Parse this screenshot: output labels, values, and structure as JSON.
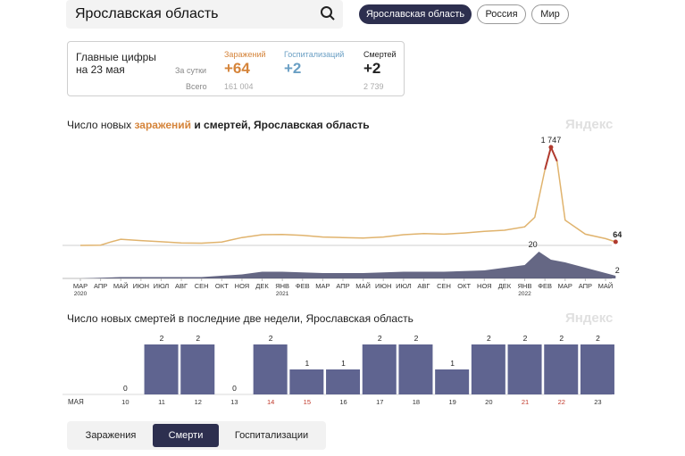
{
  "search": {
    "value": "Ярославская область"
  },
  "regions": [
    "Ярославская область",
    "Россия",
    "Мир"
  ],
  "summary": {
    "title_line1": "Главные цифры",
    "title_line2": "на 23 мая",
    "row_daily": "За сутки",
    "row_total": "Всего",
    "infections": {
      "label": "Заражений",
      "daily": "+64",
      "total": "161 004",
      "color": "#d5843a"
    },
    "hospital": {
      "label": "Госпитализаций",
      "daily": "+2",
      "total": "",
      "color": "#6a9fc4"
    },
    "deaths": {
      "label": "Смертей",
      "daily": "+2",
      "total": "2 739",
      "color": "#222222"
    }
  },
  "chart1": {
    "title_a": "Число новых ",
    "title_hl": "заражений",
    "title_b": " и ",
    "title_bold": "смертей",
    "title_c": ", Ярославская область",
    "logo": "Яндекс"
  },
  "chart2": {
    "title": "Число новых смертей в последние две недели, Ярославская область",
    "logo": "Яндекс"
  },
  "chart_data": [
    {
      "type": "line",
      "title": "Число новых заражений и смертей, Ярославская область",
      "x_ticks": [
        "МАР",
        "АПР",
        "МАЙ",
        "ИЮН",
        "ИЮЛ",
        "АВГ",
        "СЕН",
        "ОКТ",
        "НОЯ",
        "ДЕК",
        "ЯНВ",
        "ФЕВ",
        "МАР",
        "АПР",
        "МАЙ",
        "ИЮН",
        "ИЮЛ",
        "АВГ",
        "СЕН",
        "ОКТ",
        "НОЯ",
        "ДЕК",
        "ЯНВ",
        "ФЕВ",
        "МАР",
        "АПР",
        "МАЙ"
      ],
      "year_labels": [
        {
          "year": "2020",
          "after": "МАР"
        },
        {
          "year": "2021",
          "after": "ЯНВ"
        },
        {
          "year": "2022",
          "after": "ЯНВ"
        }
      ],
      "infections_peak": "1 747",
      "infections_last": "64",
      "deaths_peak": "20",
      "deaths_last": "2",
      "series": [
        {
          "name": "Заражений",
          "color": "#d5843a",
          "points": [
            [
              0,
              0
            ],
            [
              1,
              5
            ],
            [
              1.5,
              60
            ],
            [
              2,
              110
            ],
            [
              3,
              85
            ],
            [
              4,
              65
            ],
            [
              5,
              45
            ],
            [
              6,
              40
            ],
            [
              7,
              60
            ],
            [
              8,
              140
            ],
            [
              9,
              190
            ],
            [
              10,
              195
            ],
            [
              11,
              180
            ],
            [
              12,
              150
            ],
            [
              13,
              140
            ],
            [
              14,
              130
            ],
            [
              15,
              150
            ],
            [
              16,
              190
            ],
            [
              17,
              210
            ],
            [
              18,
              200
            ],
            [
              19,
              220
            ],
            [
              20,
              250
            ],
            [
              21,
              270
            ],
            [
              22,
              330
            ],
            [
              22.5,
              500
            ],
            [
              23,
              1350
            ],
            [
              23.3,
              1747
            ],
            [
              23.6,
              1500
            ],
            [
              24,
              450
            ],
            [
              25,
              200
            ],
            [
              26,
              120
            ],
            [
              26.5,
              64
            ]
          ]
        },
        {
          "name": "Смертей",
          "color": "#4a4c6e",
          "points": [
            [
              0,
              0
            ],
            [
              2,
              1
            ],
            [
              4,
              1
            ],
            [
              6,
              1
            ],
            [
              8,
              3
            ],
            [
              9,
              5
            ],
            [
              10,
              5
            ],
            [
              12,
              4
            ],
            [
              14,
              4
            ],
            [
              16,
              5
            ],
            [
              18,
              5
            ],
            [
              20,
              6
            ],
            [
              21,
              8
            ],
            [
              22,
              10
            ],
            [
              22.7,
              20
            ],
            [
              23.3,
              14
            ],
            [
              24,
              12
            ],
            [
              25,
              8
            ],
            [
              26,
              4
            ],
            [
              26.5,
              2
            ]
          ]
        }
      ]
    },
    {
      "type": "bar",
      "title": "Число новых смертей в последние две недели, Ярославская область",
      "month_label": "МАЯ",
      "categories": [
        "10",
        "11",
        "12",
        "13",
        "14",
        "15",
        "16",
        "17",
        "18",
        "19",
        "20",
        "21",
        "22",
        "23"
      ],
      "values": [
        0,
        2,
        2,
        0,
        2,
        1,
        1,
        2,
        2,
        1,
        2,
        2,
        2,
        2
      ],
      "weekend": [
        false,
        false,
        false,
        false,
        true,
        true,
        false,
        false,
        false,
        false,
        false,
        true,
        true,
        false
      ],
      "bar_color": "#5f6490",
      "weekend_color": "#c0392b",
      "ylim": [
        0,
        2
      ]
    }
  ],
  "tabs": [
    "Заражения",
    "Смерти",
    "Госпитализации"
  ],
  "active_tab": 1
}
